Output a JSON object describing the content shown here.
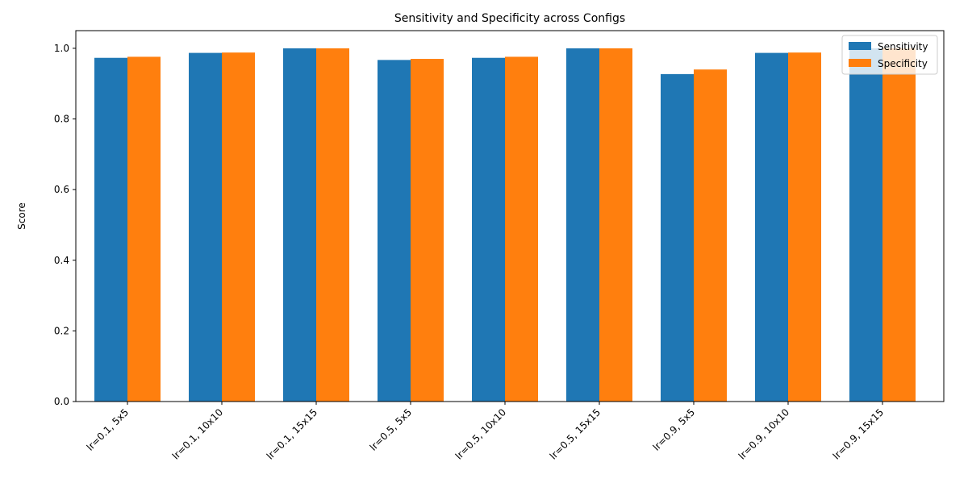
{
  "chart_data": {
    "type": "bar",
    "title": "Sensitivity and Specificity across Configs",
    "xlabel": "",
    "ylabel": "Score",
    "ylim": [
      0,
      1.05
    ],
    "yticks": [
      "0.0",
      "0.2",
      "0.4",
      "0.6",
      "0.8",
      "1.0"
    ],
    "grid": false,
    "legend_position": "top-right",
    "categories": [
      "lr=0.1, 5x5",
      "lr=0.1, 10x10",
      "lr=0.1, 15x15",
      "lr=0.5, 5x5",
      "lr=0.5, 10x10",
      "lr=0.5, 15x15",
      "lr=0.9, 5x5",
      "lr=0.9, 10x10",
      "lr=0.9, 15x15"
    ],
    "series": [
      {
        "name": "Sensitivity",
        "color": "#1f77b4",
        "values": [
          0.973,
          0.987,
          1.0,
          0.967,
          0.973,
          1.0,
          0.927,
          0.987,
          1.0
        ]
      },
      {
        "name": "Specificity",
        "color": "#ff7f0e",
        "values": [
          0.976,
          0.988,
          1.0,
          0.97,
          0.976,
          1.0,
          0.94,
          0.988,
          1.0
        ]
      }
    ]
  }
}
